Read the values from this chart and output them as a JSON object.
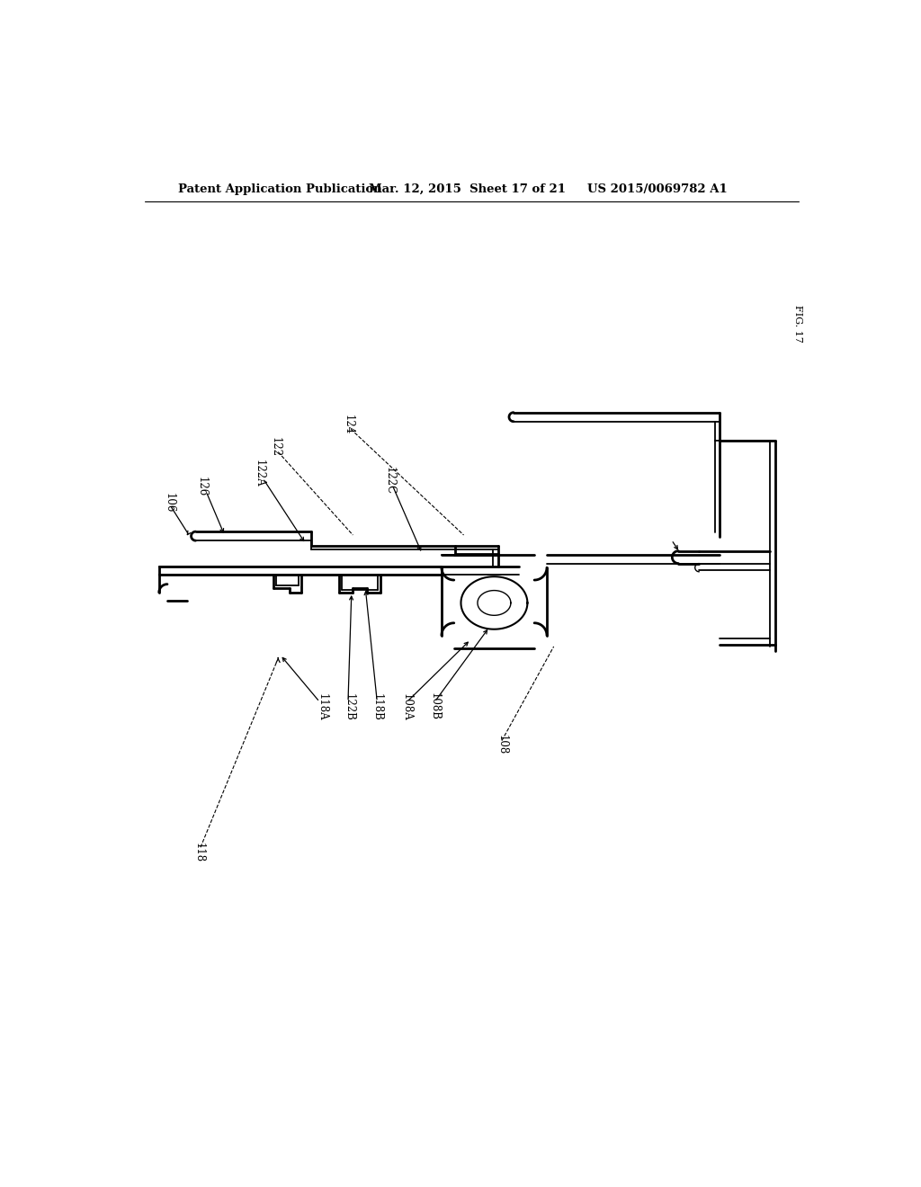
{
  "header_left": "Patent Application Publication",
  "header_center": "Mar. 12, 2015  Sheet 17 of 21",
  "header_right": "US 2015/0069782 A1",
  "fig_label": "FIG. 17",
  "background_color": "#ffffff",
  "line_color": "#000000"
}
